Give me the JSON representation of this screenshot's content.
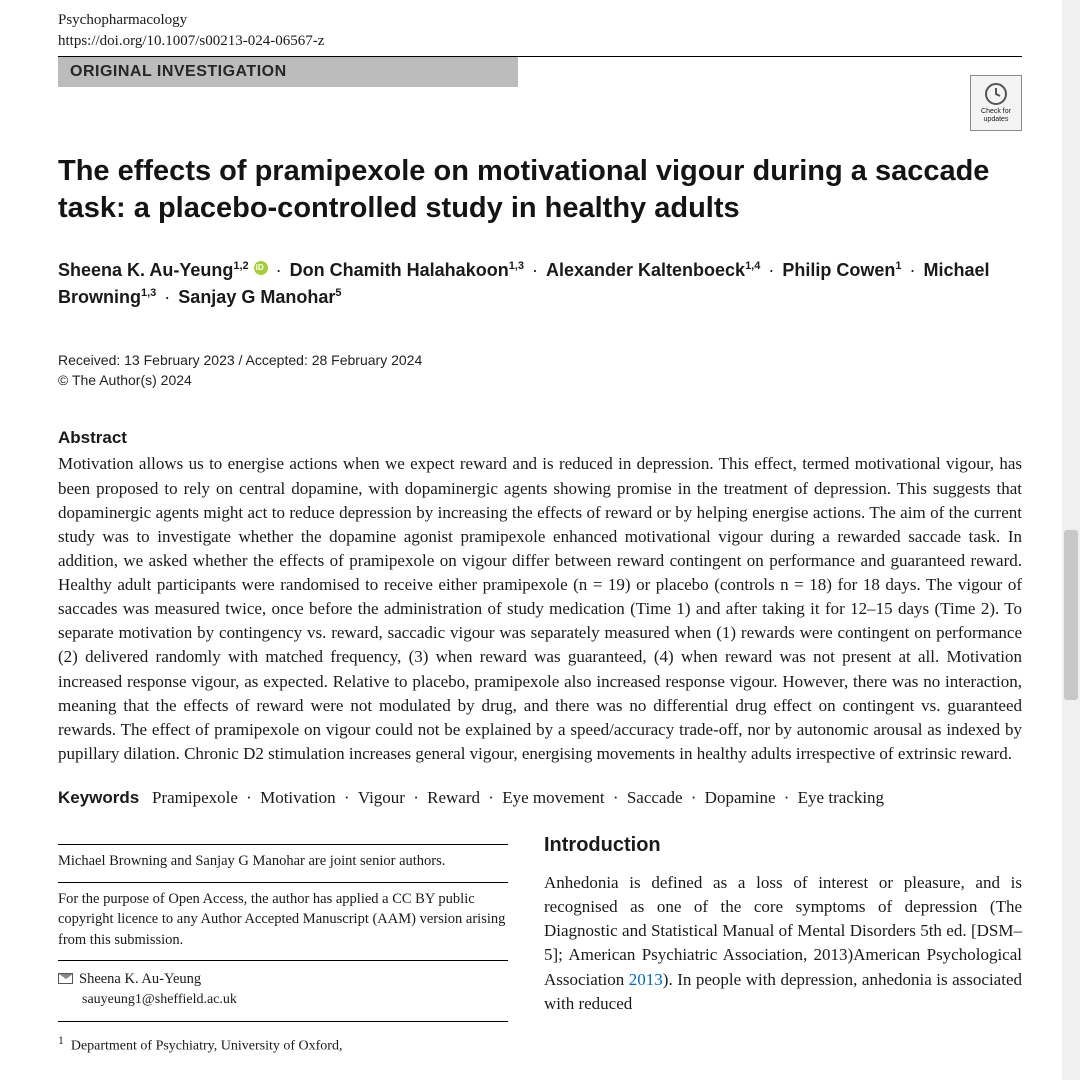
{
  "journal": "Psychopharmacology",
  "doi": "https://doi.org/10.1007/s00213-024-06567-z",
  "article_type": "ORIGINAL INVESTIGATION",
  "badge_text": "Check for updates",
  "title": "The effects of pramipexole on motivational vigour during a saccade task: a placebo-controlled study in healthy adults",
  "authors": [
    {
      "name": "Sheena K. Au-Yeung",
      "aff": "1,2",
      "orcid": true
    },
    {
      "name": "Don Chamith Halahakoon",
      "aff": "1,3"
    },
    {
      "name": "Alexander Kaltenboeck",
      "aff": "1,4"
    },
    {
      "name": "Philip Cowen",
      "aff": "1"
    },
    {
      "name": "Michael Browning",
      "aff": "1,3"
    },
    {
      "name": "Sanjay G Manohar",
      "aff": "5"
    }
  ],
  "received": "Received: 13 February 2023 / Accepted: 28 February 2024",
  "copyright": "© The Author(s) 2024",
  "abstract_label": "Abstract",
  "abstract": "Motivation allows us to energise actions when we expect reward and is reduced in depression. This effect, termed motivational vigour, has been proposed to rely on central dopamine, with dopaminergic agents showing promise in the treatment of depression. This suggests that dopaminergic agents might act to reduce depression by increasing the effects of reward or by helping energise actions. The aim of the current study was to investigate whether the dopamine agonist pramipexole enhanced motivational vigour during a rewarded saccade task. In addition, we asked whether the effects of pramipexole on vigour differ between reward contingent on performance and guaranteed reward. Healthy adult participants were randomised to receive either pramipexole (n = 19) or placebo (controls n = 18) for 18 days. The vigour of saccades was measured twice, once before the administration of study medication (Time 1) and after taking it for 12–15 days (Time 2). To separate motivation by contingency vs. reward, saccadic vigour was separately measured when (1) rewards were contingent on performance (2) delivered randomly with matched frequency, (3) when reward was guaranteed, (4) when reward was not present at all. Motivation increased response vigour, as expected. Relative to placebo, pramipexole also increased response vigour. However, there was no interaction, meaning that the effects of reward were not modulated by drug, and there was no differential drug effect on contingent vs. guaranteed rewards. The effect of pramipexole on vigour could not be explained by a speed/accuracy trade-off, nor by autonomic arousal as indexed by pupillary dilation. Chronic D2 stimulation increases general vigour, energising movements in healthy adults irrespective of extrinsic reward.",
  "keywords_label": "Keywords",
  "keywords": [
    "Pramipexole",
    "Motivation",
    "Vigour",
    "Reward",
    "Eye movement",
    "Saccade",
    "Dopamine",
    "Eye tracking"
  ],
  "joint_note": "Michael Browning and Sanjay G Manohar are joint senior authors.",
  "oa_note": "For the purpose of Open Access, the author has applied a CC BY public copyright licence to any Author Accepted Manuscript (AAM) version arising from this submission.",
  "corr_name": "Sheena K. Au-Yeung",
  "corr_email": "sauyeung1@sheffield.ac.uk",
  "affil1_num": "1",
  "affil1_text": "Department of Psychiatry, University of Oxford,",
  "intro_label": "Introduction",
  "intro_text_a": "Anhedonia is defined as a loss of interest or pleasure, and is recognised as one of the core symptoms of depression (The Diagnostic and Statistical Manual of Mental Disorders 5th ed. [DSM–5]; American Psychiatric Association, 2013)American Psychological Association ",
  "intro_cite": "2013",
  "intro_text_b": "). In people with depression, anhedonia is associated with reduced",
  "colors": {
    "banner_bg": "#bcbcbc",
    "orcid": "#a6ce39",
    "link": "#0066cc",
    "scrollbar_track": "#f0f0f0",
    "scrollbar_thumb": "#c8c8c8"
  }
}
